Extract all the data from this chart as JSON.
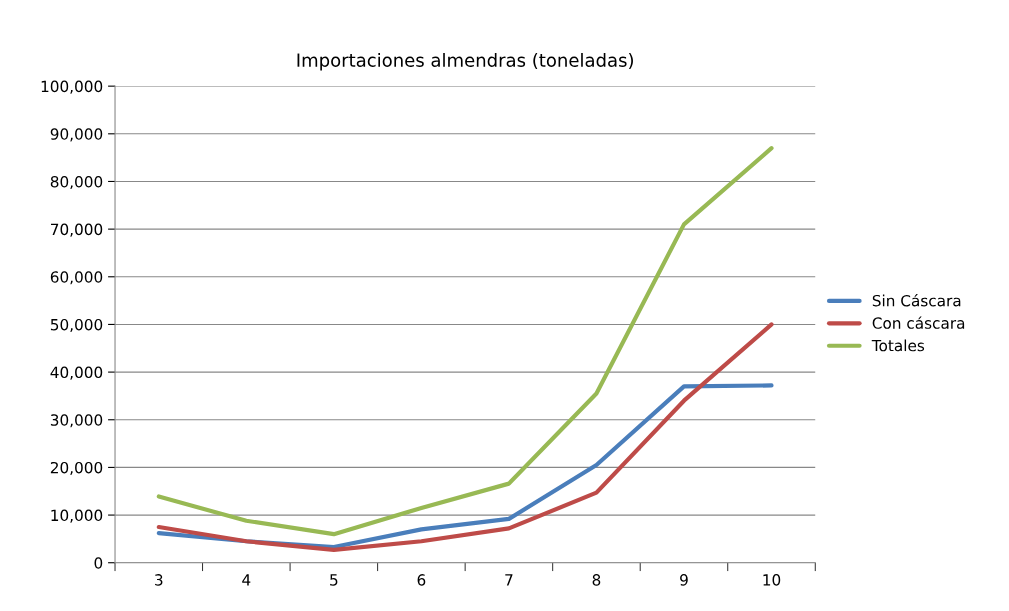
{
  "chart_data": {
    "type": "line",
    "title": "Importaciones almendras (toneladas)",
    "categories": [
      "3",
      "4",
      "5",
      "6",
      "7",
      "8",
      "9",
      "10"
    ],
    "series": [
      {
        "name": "Sin Cáscara",
        "color": "#4a7ebb",
        "values": [
          6200,
          4500,
          3300,
          7000,
          9200,
          20500,
          37000,
          37200
        ]
      },
      {
        "name": "Con cáscara",
        "color": "#be4b48",
        "values": [
          7500,
          4500,
          2700,
          4500,
          7200,
          14700,
          34000,
          50000
        ]
      },
      {
        "name": "Totales",
        "color": "#98b954",
        "values": [
          13900,
          8800,
          6000,
          11500,
          16600,
          35500,
          71000,
          87000
        ]
      }
    ],
    "ylim": [
      0,
      100000
    ],
    "yticks": [
      0,
      {
        "value": 10000,
        "label": "10,000"
      },
      {
        "value": 20000,
        "label": "20,000"
      },
      {
        "value": 30000,
        "label": "30,000"
      },
      {
        "value": 40000,
        "label": "40,000"
      },
      {
        "value": 50000,
        "label": "50,000"
      },
      {
        "value": 60000,
        "label": "60,000"
      },
      {
        "value": 70000,
        "label": "70,000"
      },
      {
        "value": 80000,
        "label": "80,000"
      },
      {
        "value": 90000,
        "label": "90,000"
      },
      {
        "value": 100000,
        "label": "100,000"
      }
    ],
    "grid": "y",
    "legend": "right",
    "marker": "none",
    "line_style": "solid"
  }
}
